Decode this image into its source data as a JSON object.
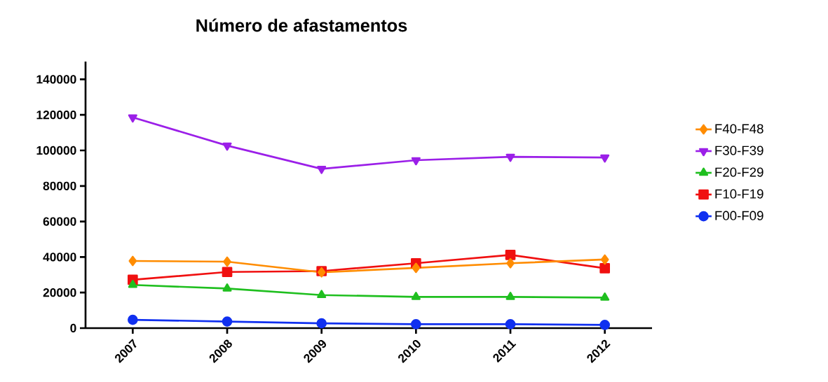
{
  "chart_data": {
    "type": "line",
    "title": "Número de afastamentos",
    "categories": [
      "2007",
      "2008",
      "2009",
      "2010",
      "2011",
      "2012"
    ],
    "series": [
      {
        "name": "F40-F48",
        "color": "#ff8c00",
        "marker": "diamond",
        "values": [
          37800,
          37400,
          31400,
          33900,
          36500,
          38600
        ]
      },
      {
        "name": "F30-F39",
        "color": "#9b1fe8",
        "marker": "triangle-down",
        "values": [
          118600,
          102700,
          89600,
          94500,
          96400,
          96000
        ]
      },
      {
        "name": "F20-F29",
        "color": "#1fbf1f",
        "marker": "triangle",
        "values": [
          24300,
          22300,
          18600,
          17600,
          17600,
          17200
        ]
      },
      {
        "name": "F10-F19",
        "color": "#f01010",
        "marker": "square",
        "values": [
          27200,
          31600,
          32100,
          36500,
          41200,
          33700
        ]
      },
      {
        "name": "F00-F09",
        "color": "#1030f0",
        "marker": "circle",
        "values": [
          4700,
          3700,
          2700,
          2200,
          2200,
          1800
        ]
      }
    ],
    "ylim": [
      0,
      150000
    ],
    "yticks": [
      0,
      20000,
      40000,
      60000,
      80000,
      100000,
      120000,
      140000
    ],
    "grid": false,
    "legend": "right",
    "line_style": "solid"
  }
}
